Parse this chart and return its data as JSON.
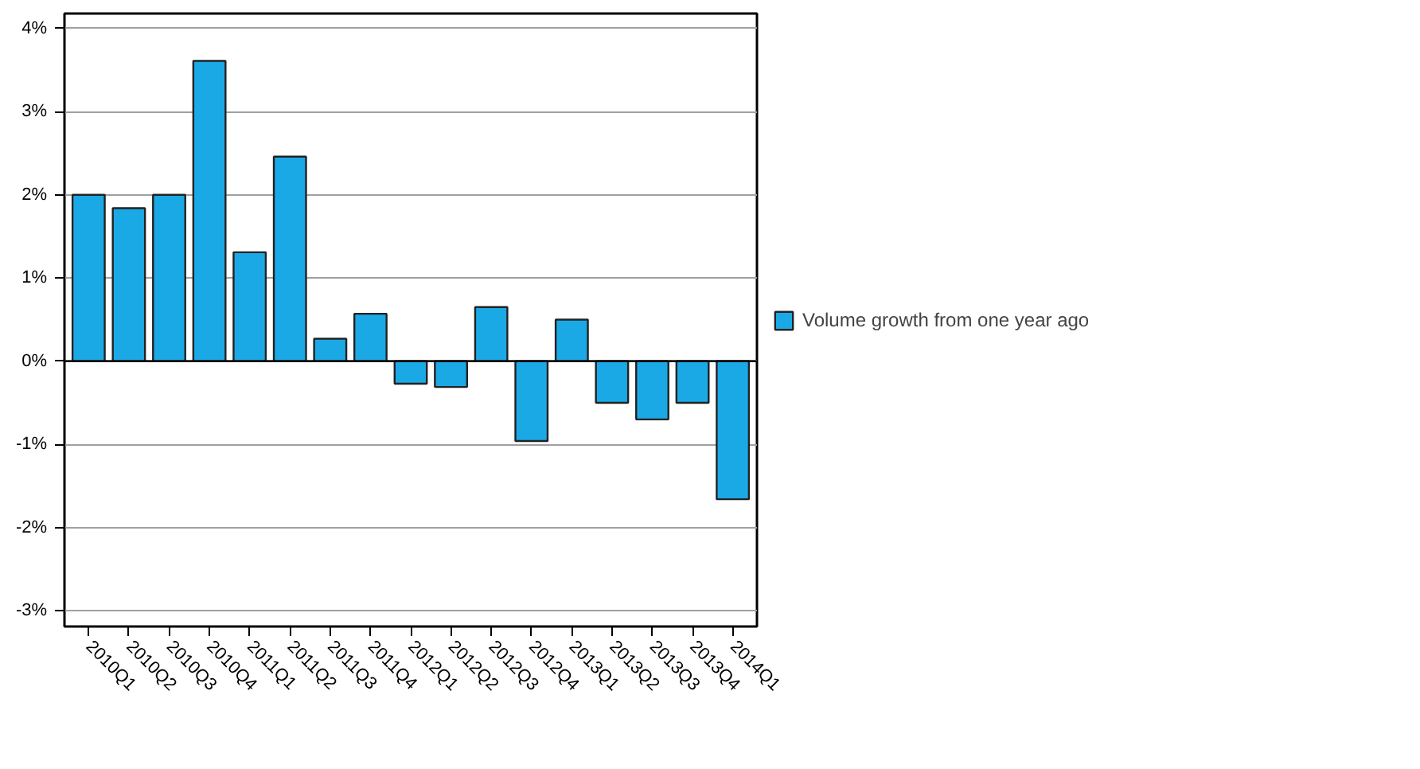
{
  "chart_data": {
    "type": "bar",
    "categories": [
      "2010Q1",
      "2010Q2",
      "2010Q3",
      "2010Q4",
      "2011Q1",
      "2011Q2",
      "2011Q3",
      "2011Q4",
      "2012Q1",
      "2012Q2",
      "2012Q3",
      "2012Q4",
      "2013Q1",
      "2013Q2",
      "2013Q3",
      "2013Q4",
      "2014Q1"
    ],
    "series": [
      {
        "name": "Volume growth from one year ago",
        "color": "#1ba9e6",
        "values": [
          2.0,
          1.84,
          2.0,
          3.61,
          1.31,
          2.46,
          0.27,
          0.57,
          -0.27,
          -0.31,
          0.65,
          -0.96,
          0.5,
          -0.5,
          -0.7,
          -0.5,
          -1.66
        ]
      }
    ],
    "ylim": [
      -3.19,
      4.18
    ],
    "yticks": [
      {
        "value": -3,
        "label": "-3%"
      },
      {
        "value": -2,
        "label": "-2%"
      },
      {
        "value": -1,
        "label": "-1%"
      },
      {
        "value": 0,
        "label": "0%"
      },
      {
        "value": 1,
        "label": "1%"
      },
      {
        "value": 2,
        "label": "2%"
      },
      {
        "value": 3,
        "label": "3%"
      },
      {
        "value": 4,
        "label": "4%"
      }
    ],
    "grid": "y",
    "legend": "right"
  }
}
